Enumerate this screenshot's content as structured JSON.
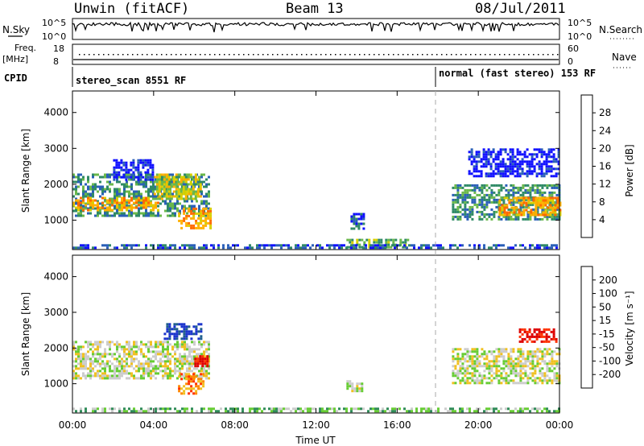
{
  "header": {
    "radar": "Unwin (fitACF)",
    "beam": "Beam 13",
    "date": "08/Jul/2011"
  },
  "status_panels": {
    "nsky_label": "N.Sky",
    "nsky_ticks": [
      "10^5",
      "10^0"
    ],
    "nsearch_label": "N.Search",
    "nsearch_ticks": [
      "10^5",
      "10^0"
    ],
    "freq_label_1": "Freq.",
    "freq_label_2": "[MHz]",
    "freq_ticks": [
      "18",
      "8"
    ],
    "nave_label": "Nave",
    "nave_ticks": [
      "60",
      "0"
    ],
    "cpid_label": "CPID",
    "cpid_modes": [
      {
        "text": "stereo_scan 8551 RF",
        "start_hour": 0
      },
      {
        "text": "normal (fast stereo) 153 RF",
        "start_hour": 18
      }
    ]
  },
  "axes": {
    "ylabel": "Slant Range [km]",
    "yticks": [
      "4000",
      "3000",
      "2000",
      "1000"
    ],
    "xlabel": "Time UT",
    "xticks": [
      "00:00",
      "04:00",
      "08:00",
      "12:00",
      "16:00",
      "20:00",
      "00:00"
    ]
  },
  "colorbars": {
    "power": {
      "label": "Power [dB]",
      "ticks": [
        "28",
        "24",
        "20",
        "16",
        "12",
        "8",
        "4"
      ],
      "colors": [
        "#ff0000",
        "#ff6a00",
        "#ffb000",
        "#d8d000",
        "#6ab84a",
        "#2f8a66",
        "#2a5fb8",
        "#1010ff"
      ]
    },
    "velocity": {
      "label": "Velocity [m s⁻¹]",
      "ticks": [
        "200",
        "100",
        "50",
        "15",
        "-15",
        "-50",
        "-100",
        "-200"
      ],
      "colors": [
        "#1a33cc",
        "#1f5f8c",
        "#2e8b57",
        "#66cc33",
        "#cccccc",
        "#f0c020",
        "#ff8800",
        "#ff3300",
        "#dd0000"
      ]
    }
  },
  "chart_data": [
    {
      "type": "heatmap",
      "title": "Power",
      "x_unit": "hours UT",
      "xlim": [
        0,
        24
      ],
      "ylim": [
        180,
        4600
      ],
      "regions": [
        {
          "x0": 0.0,
          "x1": 6.7,
          "y0": 1100,
          "y1": 2300,
          "level": 2
        },
        {
          "x0": 0.0,
          "x1": 4.2,
          "y0": 1250,
          "y1": 1650,
          "level": 5
        },
        {
          "x0": 4.0,
          "x1": 6.3,
          "y0": 1600,
          "y1": 2300,
          "level": 4
        },
        {
          "x0": 5.2,
          "x1": 6.8,
          "y0": 800,
          "y1": 1350,
          "level": 5
        },
        {
          "x0": 2.0,
          "x1": 4.0,
          "y0": 2100,
          "y1": 2700,
          "level": 0
        },
        {
          "x0": 13.7,
          "x1": 14.3,
          "y0": 750,
          "y1": 1200,
          "level": 1
        },
        {
          "x0": 13.5,
          "x1": 16.5,
          "y0": 250,
          "y1": 480,
          "level": 3
        },
        {
          "x0": 18.7,
          "x1": 24.0,
          "y0": 1000,
          "y1": 2000,
          "level": 2
        },
        {
          "x0": 21.0,
          "x1": 24.0,
          "y0": 1150,
          "y1": 1650,
          "level": 5
        },
        {
          "x0": 19.5,
          "x1": 24.0,
          "y0": 2200,
          "y1": 3000,
          "level": 0
        },
        {
          "x0": 0.0,
          "x1": 24.0,
          "y0": 200,
          "y1": 330,
          "level": 1
        }
      ]
    },
    {
      "type": "heatmap",
      "title": "Velocity",
      "x_unit": "hours UT",
      "xlim": [
        0,
        24
      ],
      "ylim": [
        180,
        4600
      ],
      "regions": [
        {
          "x0": 0.0,
          "x1": 6.7,
          "y0": 1150,
          "y1": 2200,
          "level": 4
        },
        {
          "x0": 4.5,
          "x1": 6.4,
          "y0": 2250,
          "y1": 2700,
          "level": 0
        },
        {
          "x0": 5.2,
          "x1": 6.5,
          "y0": 750,
          "y1": 1300,
          "level": 6
        },
        {
          "x0": 6.0,
          "x1": 6.6,
          "y0": 1500,
          "y1": 1800,
          "level": 8
        },
        {
          "x0": 13.5,
          "x1": 14.3,
          "y0": 800,
          "y1": 1100,
          "level": 4
        },
        {
          "x0": 18.7,
          "x1": 24.0,
          "y0": 1000,
          "y1": 2000,
          "level": 4
        },
        {
          "x0": 22.0,
          "x1": 23.8,
          "y0": 2200,
          "y1": 2550,
          "level": 8
        },
        {
          "x0": 0.0,
          "x1": 24.0,
          "y0": 200,
          "y1": 330,
          "level": 3
        }
      ]
    }
  ]
}
